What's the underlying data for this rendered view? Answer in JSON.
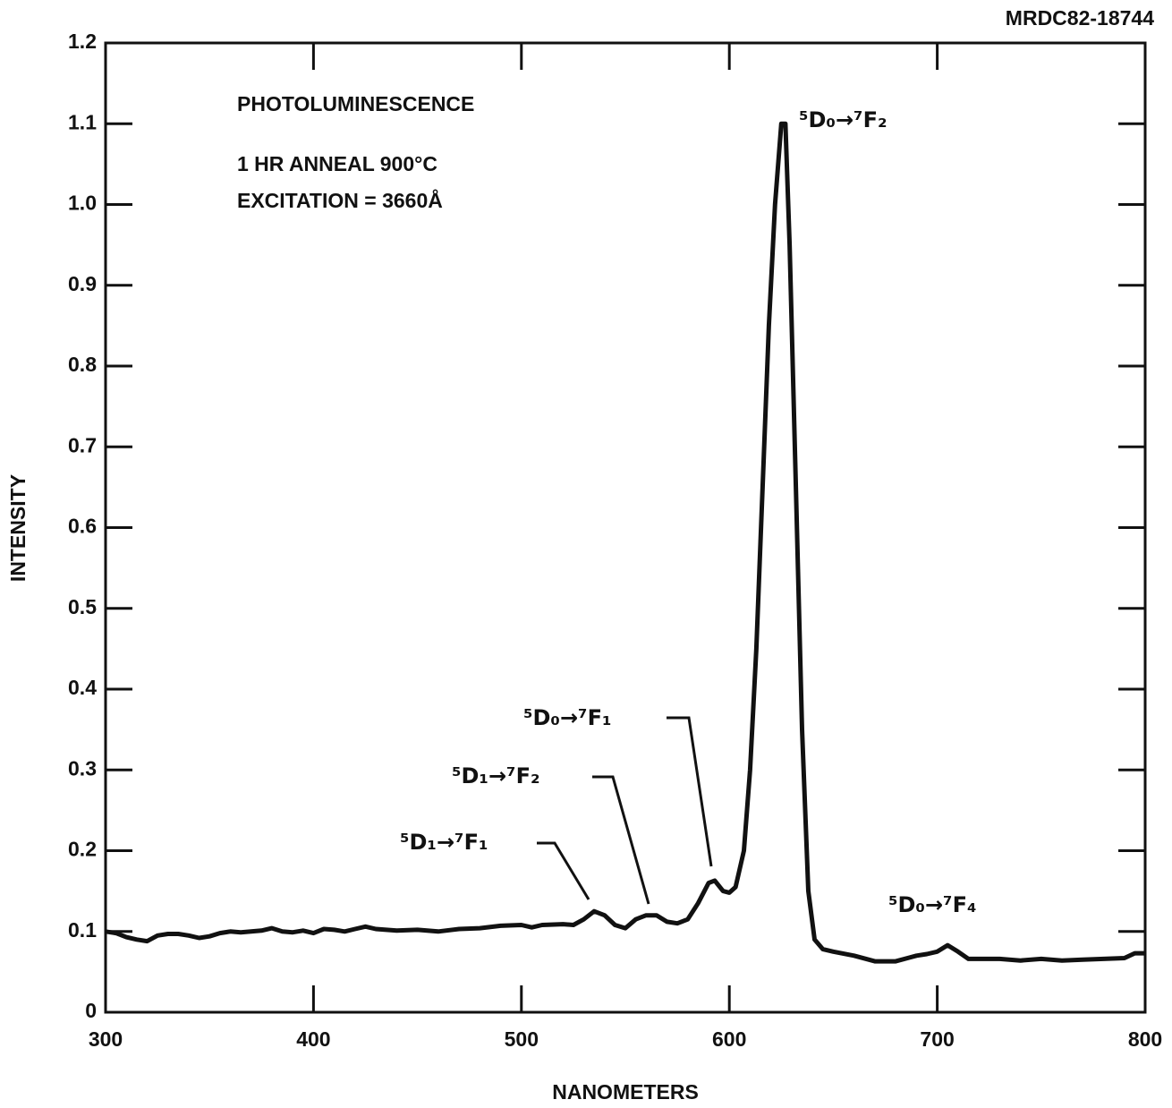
{
  "chart_data": {
    "type": "line",
    "code": "MRDC82-18744",
    "xlabel": "NANOMETERS",
    "ylabel": "INTENSITY",
    "notes": [
      "PHOTOLUMINESCENCE",
      "1 HR ANNEAL 900°C",
      "EXCITATION = 3660Å"
    ],
    "annotations": [
      "⁵D₀→⁷F₂",
      "⁵D₀→⁷F₁",
      "⁵D₁→⁷F₂",
      "⁵D₁→⁷F₁",
      "⁵D₀→⁷F₄"
    ],
    "color": "#111111",
    "x": [
      300,
      305,
      310,
      315,
      320,
      325,
      330,
      335,
      340,
      345,
      350,
      355,
      360,
      365,
      370,
      375,
      380,
      385,
      390,
      395,
      400,
      405,
      410,
      415,
      420,
      425,
      430,
      440,
      450,
      460,
      470,
      480,
      490,
      500,
      505,
      510,
      520,
      525,
      530,
      535,
      540,
      545,
      550,
      555,
      560,
      565,
      570,
      575,
      580,
      585,
      590,
      593,
      597,
      600,
      603,
      607,
      610,
      613,
      616,
      619,
      622,
      625,
      627,
      629,
      632,
      635,
      638,
      641,
      645,
      650,
      660,
      670,
      680,
      690,
      695,
      700,
      705,
      710,
      715,
      720,
      730,
      740,
      750,
      760,
      770,
      780,
      790,
      795,
      800
    ],
    "values": [
      0.1,
      0.098,
      0.093,
      0.09,
      0.088,
      0.095,
      0.097,
      0.097,
      0.095,
      0.092,
      0.094,
      0.098,
      0.1,
      0.099,
      0.1,
      0.101,
      0.104,
      0.1,
      0.099,
      0.101,
      0.098,
      0.103,
      0.102,
      0.1,
      0.103,
      0.106,
      0.103,
      0.101,
      0.102,
      0.1,
      0.103,
      0.104,
      0.107,
      0.108,
      0.105,
      0.108,
      0.109,
      0.108,
      0.115,
      0.125,
      0.12,
      0.108,
      0.104,
      0.115,
      0.12,
      0.12,
      0.112,
      0.11,
      0.115,
      0.135,
      0.16,
      0.163,
      0.15,
      0.148,
      0.155,
      0.2,
      0.3,
      0.45,
      0.65,
      0.85,
      1.0,
      1.1,
      1.1,
      0.95,
      0.65,
      0.35,
      0.15,
      0.09,
      0.078,
      0.075,
      0.07,
      0.063,
      0.063,
      0.07,
      0.072,
      0.075,
      0.083,
      0.075,
      0.066,
      0.066,
      0.066,
      0.064,
      0.066,
      0.064,
      0.065,
      0.066,
      0.067,
      0.073,
      0.073
    ],
    "xlim": [
      300,
      800
    ],
    "ylim": [
      0,
      1.2
    ],
    "xticks": [
      300,
      400,
      500,
      600,
      700,
      800
    ],
    "yticks": [
      0,
      0.1,
      0.2,
      0.3,
      0.4,
      0.5,
      0.6,
      0.7,
      0.8,
      0.9,
      {
        "value": 1,
        "label": "1.0"
      },
      1.1,
      1.2
    ]
  }
}
